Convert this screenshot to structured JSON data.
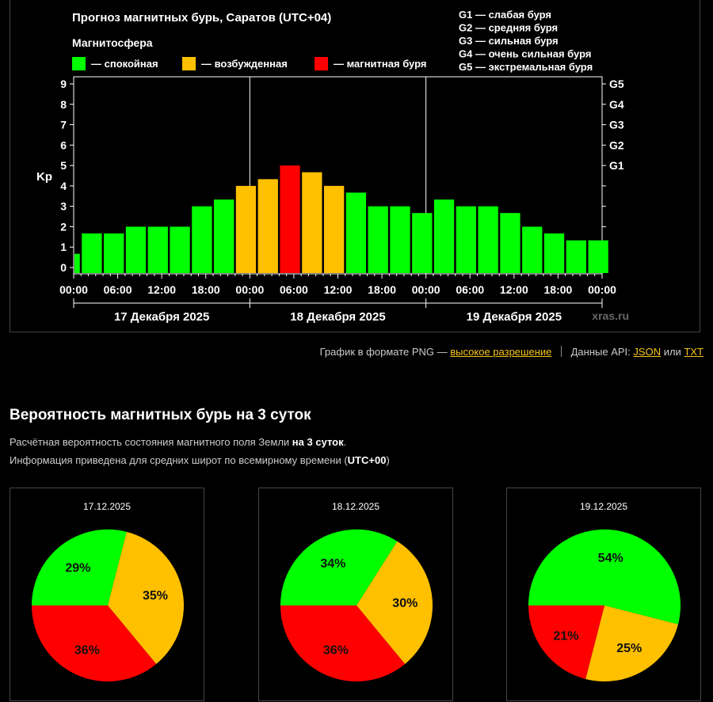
{
  "chart": {
    "title": "Прогноз магнитных бурь, Саратов (UTC+04)",
    "legend_title": "Магнитосфера",
    "legend": [
      {
        "label": "— спокойная",
        "color": "#00ff00"
      },
      {
        "label": "— возбужденная",
        "color": "#ffc000"
      },
      {
        "label": "— магнитная буря",
        "color": "#ff0000"
      }
    ],
    "g_scale": [
      "G1 — слабая буря",
      "G2 — средняя буря",
      "G3 — сильная буря",
      "G4 — очень сильная буря",
      "G5 — экстремальная буря"
    ],
    "ylabel": "Kp",
    "y_ticks": [
      "0",
      "1",
      "2",
      "3",
      "4",
      "5",
      "6",
      "7",
      "8",
      "9"
    ],
    "g_ticks": [
      "G1",
      "G2",
      "G3",
      "G4",
      "G5"
    ],
    "x_ticks": [
      "00:00",
      "06:00",
      "12:00",
      "18:00",
      "00:00",
      "06:00",
      "12:00",
      "18:00",
      "00:00",
      "06:00",
      "12:00",
      "18:00",
      "00:00"
    ],
    "days": [
      "17 Декабря 2025",
      "18 Декабря 2025",
      "19 Декабря 2025"
    ],
    "watermark": "xras.ru"
  },
  "chart_data": [
    {
      "type": "bar",
      "title": "Прогноз магнитных бурь, Саратов (UTC+04)",
      "ylabel": "Kp",
      "ylim": [
        0,
        9
      ],
      "x_start": "17.12.2025 00:00 (UTC+04)",
      "bar_interval_hours": 3,
      "first_bar_duration_hours": 1,
      "values": [
        0.67,
        1.67,
        1.67,
        2.0,
        2.0,
        2.0,
        3.0,
        3.33,
        4.0,
        4.33,
        5.0,
        4.67,
        4.0,
        3.67,
        3.0,
        3.0,
        2.67,
        3.33,
        3.0,
        3.0,
        2.67,
        2.0,
        1.67,
        1.33,
        1.33
      ],
      "thresholds": {
        "green_below": 4,
        "yellow_from": 4,
        "red_from": 5
      }
    },
    {
      "type": "pie",
      "title": "17.12.2025",
      "labels": [
        "спокойная",
        "возбужденная",
        "магнитная буря"
      ],
      "values": [
        29,
        35,
        36
      ]
    },
    {
      "type": "pie",
      "title": "18.12.2025",
      "labels": [
        "спокойная",
        "возбужденная",
        "магнитная буря"
      ],
      "values": [
        34,
        30,
        36
      ]
    },
    {
      "type": "pie",
      "title": "19.12.2025",
      "labels": [
        "спокойная",
        "возбужденная",
        "магнитная буря"
      ],
      "values": [
        54,
        25,
        21
      ]
    }
  ],
  "links": {
    "png_prefix": "График в формате PNG —",
    "png_link": "высокое разрешение",
    "api_prefix": "Данные API:",
    "json": "JSON",
    "or": "или",
    "txt": "TXT"
  },
  "section": {
    "title": "Вероятность магнитных бурь на 3 суток",
    "desc1_pre": "Расчётная вероятность состояния магнитного поля Земли ",
    "desc1_bold": "на 3 суток",
    "desc1_post": ".",
    "desc2_pre": "Информация приведена для средних широт по всемирному времени (",
    "desc2_bold": "UTC+00",
    "desc2_post": ")"
  },
  "pies": [
    {
      "date": "17.12.2025"
    },
    {
      "date": "18.12.2025"
    },
    {
      "date": "19.12.2025"
    }
  ],
  "colors": {
    "quiet": "#00ff00",
    "active": "#ffc000",
    "storm": "#ff0000"
  }
}
